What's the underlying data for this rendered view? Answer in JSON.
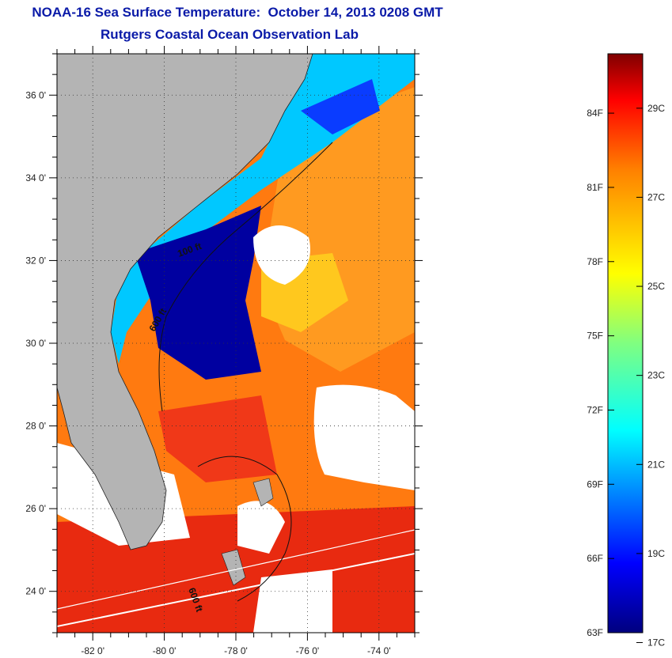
{
  "header": {
    "title": "NOAA-16 Sea Surface Temperature:  October 14, 2013 0208 GMT",
    "subtitle": "Rutgers Coastal Ocean Observation Lab"
  },
  "map": {
    "lat_ticks": [
      {
        "value": 36,
        "label": "36 0'"
      },
      {
        "value": 34,
        "label": "34 0'"
      },
      {
        "value": 32,
        "label": "32 0'"
      },
      {
        "value": 30,
        "label": "30 0'"
      },
      {
        "value": 28,
        "label": "28 0'"
      },
      {
        "value": 26,
        "label": "26 0'"
      },
      {
        "value": 24,
        "label": "24 0'"
      }
    ],
    "lon_ticks": [
      {
        "value": -82,
        "label": "-82 0'"
      },
      {
        "value": -80,
        "label": "-80 0'"
      },
      {
        "value": -78,
        "label": "-78 0'"
      },
      {
        "value": -76,
        "label": "-76 0'"
      },
      {
        "value": -74,
        "label": "-74 0'"
      }
    ],
    "lat_range": [
      23,
      37
    ],
    "lon_range": [
      -83,
      -73
    ],
    "contour_labels": [
      "100 ft",
      "600 ft",
      "600 ft"
    ],
    "colors": {
      "land": "#b4b4b4",
      "cloud": "#ffffff",
      "cold": "#00008b",
      "warm": "#ff4000"
    }
  },
  "colorbar": {
    "fahrenheit_labels": [
      "84F",
      "81F",
      "78F",
      "75F",
      "72F",
      "69F",
      "66F",
      "63F"
    ],
    "celsius_labels": [
      "29C",
      "27C",
      "25C",
      "23C",
      "21C",
      "19C",
      "17C"
    ]
  }
}
